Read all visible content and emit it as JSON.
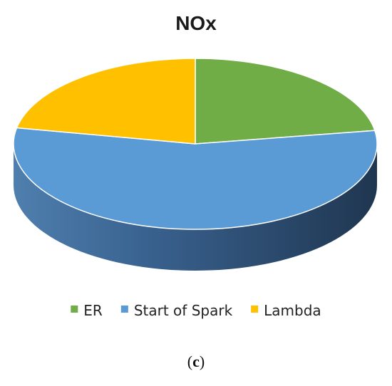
{
  "chart_data": {
    "type": "pie",
    "title": "NOx",
    "style": "3d",
    "legend_position": "bottom",
    "slices": [
      {
        "name": "ER",
        "value": 22.5,
        "color": "#70ad47",
        "side_color": "#4e7a32"
      },
      {
        "name": "Start of Spark",
        "value": 55.5,
        "color": "#5b9bd5",
        "side_color": "#34577a"
      },
      {
        "name": "Lambda",
        "value": 22.0,
        "color": "#ffc000",
        "side_color": "#b38600"
      }
    ]
  },
  "caption": {
    "open": "(",
    "letter": "c",
    "close": ")"
  }
}
